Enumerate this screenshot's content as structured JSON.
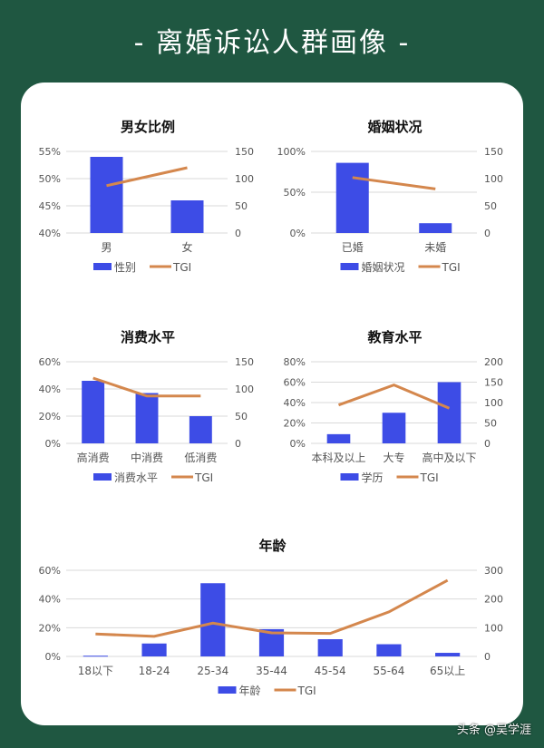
{
  "header": {
    "title": "-  离婚诉讼人群画像  -"
  },
  "watermark": "头条 @吴学涯",
  "colors": {
    "background": "#1f5741",
    "bar": "#3d4ce6",
    "line": "#d4874d",
    "grid": "#d9d9d9"
  },
  "chart_data": [
    {
      "type": "bar+line",
      "title": "男女比例",
      "categories": [
        "男",
        "女"
      ],
      "series": [
        {
          "name": "性别",
          "type": "bar",
          "axis": "left",
          "values": [
            54,
            46
          ],
          "unit": "%"
        },
        {
          "name": "TGI",
          "type": "line",
          "axis": "right",
          "values": [
            87,
            120
          ]
        }
      ],
      "left_axis": {
        "min": 40,
        "max": 55,
        "ticks": [
          "55%",
          "50%",
          "45%",
          "40%"
        ]
      },
      "right_axis": {
        "min": 0,
        "max": 150,
        "ticks": [
          "150",
          "100",
          "50",
          "0"
        ]
      },
      "legend": [
        "性别",
        "TGI"
      ],
      "legend_position": "bottom",
      "grid": true
    },
    {
      "type": "bar+line",
      "title": "婚姻状况",
      "categories": [
        "已婚",
        "未婚"
      ],
      "series": [
        {
          "name": "婚姻状况",
          "type": "bar",
          "axis": "left",
          "values": [
            86,
            12
          ],
          "unit": "%"
        },
        {
          "name": "TGI",
          "type": "line",
          "axis": "right",
          "values": [
            102,
            81
          ]
        }
      ],
      "left_axis": {
        "min": 0,
        "max": 100,
        "ticks": [
          "100%",
          "50%",
          "0%"
        ]
      },
      "right_axis": {
        "min": 0,
        "max": 150,
        "ticks": [
          "150",
          "100",
          "50",
          "0"
        ]
      },
      "legend": [
        "婚姻状况",
        "TGI"
      ],
      "legend_position": "bottom",
      "grid": true
    },
    {
      "type": "bar+line",
      "title": "消费水平",
      "categories": [
        "高消费",
        "中消费",
        "低消费"
      ],
      "series": [
        {
          "name": "消费水平",
          "type": "bar",
          "axis": "left",
          "values": [
            46,
            37,
            20
          ],
          "unit": "%"
        },
        {
          "name": "TGI",
          "type": "line",
          "axis": "right",
          "values": [
            120,
            87,
            87
          ]
        }
      ],
      "left_axis": {
        "min": 0,
        "max": 60,
        "ticks": [
          "60%",
          "40%",
          "20%",
          "0%"
        ]
      },
      "right_axis": {
        "min": 0,
        "max": 150,
        "ticks": [
          "150",
          "100",
          "50",
          "0"
        ]
      },
      "legend": [
        "消费水平",
        "TGI"
      ],
      "legend_position": "bottom",
      "grid": true
    },
    {
      "type": "bar+line",
      "title": "教育水平",
      "categories": [
        "本科及以上",
        "大专",
        "高中及以下"
      ],
      "series": [
        {
          "name": "学历",
          "type": "bar",
          "axis": "left",
          "values": [
            9,
            30,
            60
          ],
          "unit": "%"
        },
        {
          "name": "TGI",
          "type": "line",
          "axis": "right",
          "values": [
            94,
            143,
            86
          ]
        }
      ],
      "left_axis": {
        "min": 0,
        "max": 80,
        "ticks": [
          "80%",
          "60%",
          "40%",
          "20%",
          "0%"
        ]
      },
      "right_axis": {
        "min": 0,
        "max": 200,
        "ticks": [
          "200",
          "150",
          "100",
          "50",
          "0"
        ]
      },
      "legend": [
        "学历",
        "TGI"
      ],
      "legend_position": "bottom",
      "grid": true
    },
    {
      "type": "bar+line",
      "title": "年龄",
      "categories": [
        "18以下",
        "18-24",
        "25-34",
        "35-44",
        "45-54",
        "55-64",
        "65以上"
      ],
      "series": [
        {
          "name": "年龄",
          "type": "bar",
          "axis": "left",
          "values": [
            0.5,
            9,
            51,
            19,
            12,
            8.5,
            2.5
          ],
          "unit": "%"
        },
        {
          "name": "TGI",
          "type": "line",
          "axis": "right",
          "values": [
            78,
            70,
            116,
            82,
            80,
            155,
            265
          ]
        }
      ],
      "left_axis": {
        "min": 0,
        "max": 60,
        "ticks": [
          "60%",
          "40%",
          "20%",
          "0%"
        ]
      },
      "right_axis": {
        "min": 0,
        "max": 300,
        "ticks": [
          "300",
          "200",
          "100",
          "0"
        ]
      },
      "legend": [
        "年龄",
        "TGI"
      ],
      "legend_position": "bottom",
      "grid": true
    }
  ]
}
